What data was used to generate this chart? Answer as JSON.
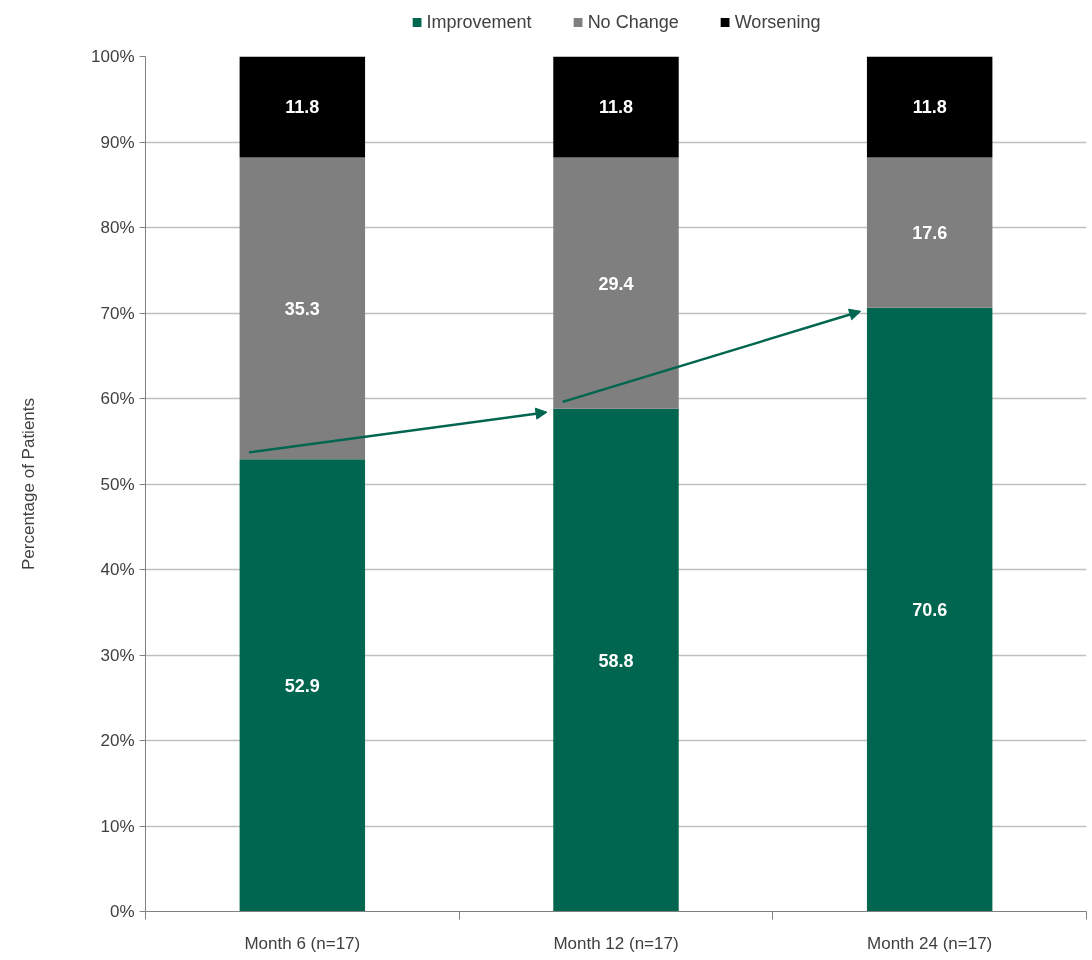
{
  "chart_data": {
    "type": "bar",
    "stacked": true,
    "ylabel": "Percentage of Patients",
    "categories": [
      "Month 6 (n=17)",
      "Month 12 (n=17)",
      "Month 24 (n=17)"
    ],
    "series": [
      {
        "name": "Improvement",
        "color": "#006650",
        "values": [
          52.9,
          58.8,
          70.6
        ]
      },
      {
        "name": "No Change",
        "color": "#7f7f7f",
        "values": [
          35.3,
          29.4,
          17.6
        ]
      },
      {
        "name": "Worsening",
        "color": "#000000",
        "values": [
          11.8,
          11.8,
          11.8
        ]
      }
    ],
    "ylim": [
      0,
      100
    ],
    "yticks": [
      {
        "value": 0,
        "label": "0%"
      },
      {
        "value": 10,
        "label": "10%"
      },
      {
        "value": 20,
        "label": "20%"
      },
      {
        "value": 30,
        "label": "30%"
      },
      {
        "value": 40,
        "label": "40%"
      },
      {
        "value": 50,
        "label": "50%"
      },
      {
        "value": 60,
        "label": "60%"
      },
      {
        "value": 70,
        "label": "70%"
      },
      {
        "value": 80,
        "label": "80%"
      },
      {
        "value": 90,
        "label": "90%"
      },
      {
        "value": 100,
        "label": "100%"
      }
    ],
    "grid": "y",
    "legend": "top",
    "data_labels": true
  }
}
